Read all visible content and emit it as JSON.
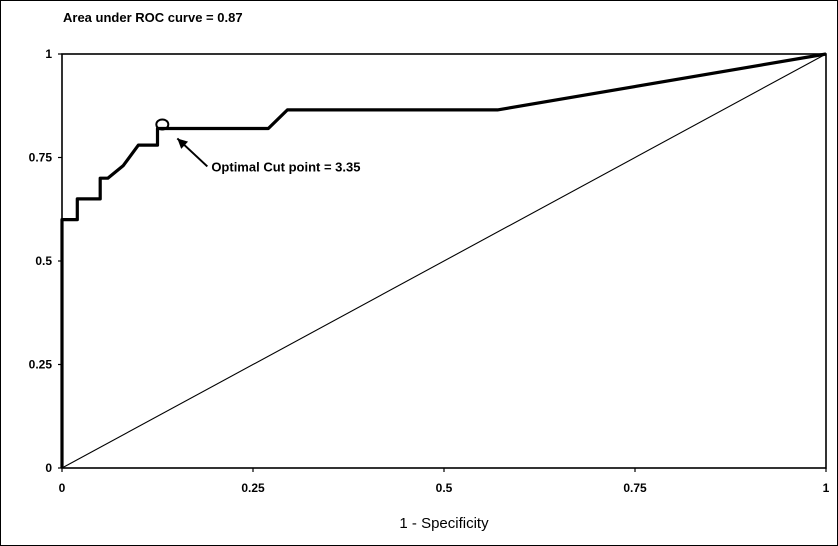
{
  "chart_data": {
    "type": "line",
    "title": "Area under ROC curve = 0.87",
    "xlabel": "1 - Specificity",
    "ylabel": "",
    "xlim": [
      0,
      1
    ],
    "ylim": [
      0,
      1
    ],
    "x_ticks": [
      "0",
      "0.25",
      "0.5",
      "0.75",
      "1"
    ],
    "y_ticks": [
      "0",
      "0.25",
      "0.5",
      "0.75",
      "1"
    ],
    "grid": false,
    "series": [
      {
        "style": "thick",
        "points": [
          [
            0,
            0
          ],
          [
            0,
            0.6
          ],
          [
            0.02,
            0.6
          ],
          [
            0.02,
            0.65
          ],
          [
            0.05,
            0.65
          ],
          [
            0.05,
            0.7
          ],
          [
            0.06,
            0.7
          ],
          [
            0.08,
            0.73
          ],
          [
            0.1,
            0.78
          ],
          [
            0.125,
            0.78
          ],
          [
            0.125,
            0.82
          ],
          [
            0.27,
            0.82
          ],
          [
            0.295,
            0.865
          ],
          [
            0.57,
            0.865
          ],
          [
            1,
            1
          ]
        ]
      },
      {
        "style": "thin",
        "points": [
          [
            0,
            0
          ],
          [
            1,
            1
          ]
        ]
      }
    ],
    "annotations": [
      {
        "text": "Optimal Cut point = 3.35",
        "x": 0.13,
        "y": 0.825
      }
    ]
  }
}
